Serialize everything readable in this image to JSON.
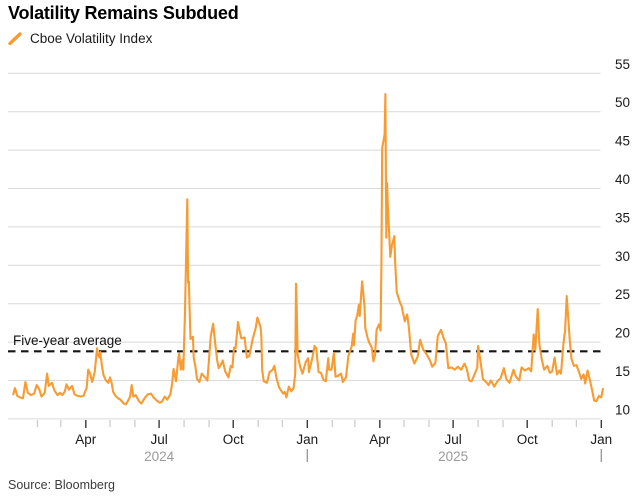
{
  "header": {
    "title": "Volatility Remains Subdued"
  },
  "legend": {
    "items": [
      {
        "label": "Cboe Volatility Index",
        "marker": "slash-icon",
        "color": "#F79B32"
      }
    ]
  },
  "source": {
    "text": "Source: Bloomberg"
  },
  "colors": {
    "line": "#F79B32",
    "grid": "#d9d9d9",
    "average_line": "#141414",
    "axis_text": "#1a1a1a",
    "year_text": "#9b9b9b",
    "minor_tick": "#c9c9c9",
    "major_tick": "#3a3a3a",
    "background": "#ffffff"
  },
  "chart_data": {
    "type": "line",
    "title": "Volatility Remains Subdued",
    "legend_position": "top-left",
    "grid": "horizontal",
    "y_axis": {
      "side": "right",
      "ticks": [
        10,
        15,
        20,
        25,
        30,
        35,
        40,
        45,
        50,
        55
      ],
      "range": [
        9.4,
        55.8
      ]
    },
    "x_axis": {
      "unit": "days_since_2024-01-01",
      "major_ticks": [
        {
          "day": 91,
          "label": "Apr"
        },
        {
          "day": 182,
          "label": "Jul"
        },
        {
          "day": 274,
          "label": "Oct"
        },
        {
          "day": 366,
          "label": "Jan"
        },
        {
          "day": 456,
          "label": "Apr"
        },
        {
          "day": 547,
          "label": "Jul"
        },
        {
          "day": 639,
          "label": "Oct"
        },
        {
          "day": 731,
          "label": "Jan"
        }
      ],
      "minor_tick_days": [
        31,
        60,
        121,
        152,
        213,
        244,
        305,
        335,
        397,
        425,
        486,
        517,
        578,
        609,
        670,
        700
      ],
      "year_labels": [
        {
          "label": "2024",
          "day": 182
        },
        {
          "label": "2025",
          "day": 547
        }
      ],
      "year_boundary_days": [
        366,
        731
      ]
    },
    "average_line": {
      "label": "Five-year average",
      "value": 18.8,
      "style": "dashed"
    },
    "series": [
      {
        "name": "Cboe Volatility Index",
        "color": "#F79B32",
        "points": [
          [
            1,
            13.2
          ],
          [
            3,
            14.0
          ],
          [
            6,
            13.0
          ],
          [
            9,
            12.8
          ],
          [
            13,
            12.7
          ],
          [
            16,
            14.8
          ],
          [
            19,
            13.4
          ],
          [
            23,
            13.1
          ],
          [
            27,
            13.3
          ],
          [
            30,
            14.4
          ],
          [
            33,
            13.9
          ],
          [
            36,
            12.9
          ],
          [
            40,
            13.4
          ],
          [
            43,
            15.9
          ],
          [
            45,
            14.3
          ],
          [
            49,
            14.7
          ],
          [
            52,
            13.7
          ],
          [
            56,
            13.1
          ],
          [
            59,
            13.4
          ],
          [
            62,
            13.1
          ],
          [
            65,
            13.6
          ],
          [
            67,
            14.5
          ],
          [
            70,
            13.8
          ],
          [
            74,
            14.3
          ],
          [
            77,
            13.2
          ],
          [
            81,
            13.0
          ],
          [
            85,
            12.9
          ],
          [
            88,
            13.0
          ],
          [
            92,
            14.0
          ],
          [
            94,
            16.4
          ],
          [
            96,
            16.0
          ],
          [
            99,
            14.8
          ],
          [
            102,
            16.1
          ],
          [
            105,
            19.2
          ],
          [
            106,
            18.4
          ],
          [
            108,
            18.0
          ],
          [
            109,
            18.7
          ],
          [
            111,
            16.9
          ],
          [
            113,
            15.7
          ],
          [
            116,
            15.0
          ],
          [
            119,
            14.7
          ],
          [
            121,
            15.4
          ],
          [
            123,
            14.7
          ],
          [
            125,
            13.5
          ],
          [
            128,
            13.0
          ],
          [
            131,
            12.7
          ],
          [
            134,
            12.5
          ],
          [
            138,
            12.0
          ],
          [
            141,
            11.9
          ],
          [
            143,
            12.3
          ],
          [
            146,
            12.9
          ],
          [
            148,
            14.4
          ],
          [
            150,
            12.9
          ],
          [
            153,
            13.1
          ],
          [
            157,
            12.3
          ],
          [
            160,
            12.0
          ],
          [
            164,
            12.7
          ],
          [
            168,
            13.2
          ],
          [
            172,
            13.3
          ],
          [
            175,
            12.8
          ],
          [
            179,
            12.4
          ],
          [
            183,
            12.1
          ],
          [
            186,
            12.3
          ],
          [
            189,
            12.9
          ],
          [
            192,
            12.5
          ],
          [
            196,
            13.2
          ],
          [
            198,
            14.5
          ],
          [
            200,
            16.5
          ],
          [
            203,
            14.9
          ],
          [
            206,
            18.0
          ],
          [
            207,
            18.5
          ],
          [
            209,
            16.4
          ],
          [
            211,
            17.7
          ],
          [
            212,
            16.4
          ],
          [
            214,
            23.4
          ],
          [
            217,
            38.6
          ],
          [
            218,
            27.7
          ],
          [
            219,
            27.9
          ],
          [
            220,
            23.8
          ],
          [
            221,
            20.4
          ],
          [
            224,
            20.7
          ],
          [
            225,
            18.0
          ],
          [
            227,
            16.9
          ],
          [
            229,
            15.2
          ],
          [
            232,
            14.8
          ],
          [
            235,
            15.9
          ],
          [
            239,
            15.4
          ],
          [
            242,
            15.0
          ],
          [
            246,
            20.7
          ],
          [
            249,
            22.4
          ],
          [
            252,
            19.5
          ],
          [
            254,
            17.7
          ],
          [
            256,
            16.6
          ],
          [
            259,
            17.1
          ],
          [
            261,
            17.6
          ],
          [
            264,
            16.2
          ],
          [
            268,
            15.4
          ],
          [
            271,
            16.9
          ],
          [
            273,
            16.7
          ],
          [
            275,
            19.3
          ],
          [
            277,
            19.2
          ],
          [
            280,
            22.6
          ],
          [
            282,
            21.4
          ],
          [
            284,
            20.5
          ],
          [
            288,
            20.6
          ],
          [
            291,
            18.0
          ],
          [
            294,
            18.2
          ],
          [
            296,
            19.2
          ],
          [
            298,
            20.3
          ],
          [
            302,
            21.9
          ],
          [
            304,
            23.2
          ],
          [
            308,
            21.9
          ],
          [
            309,
            20.5
          ],
          [
            310,
            16.3
          ],
          [
            312,
            14.9
          ],
          [
            316,
            14.7
          ],
          [
            319,
            16.1
          ],
          [
            323,
            16.4
          ],
          [
            325,
            16.9
          ],
          [
            328,
            15.2
          ],
          [
            331,
            14.1
          ],
          [
            336,
            13.3
          ],
          [
            338,
            13.5
          ],
          [
            340,
            12.8
          ],
          [
            343,
            14.2
          ],
          [
            346,
            13.6
          ],
          [
            349,
            14.0
          ],
          [
            351,
            15.9
          ],
          [
            352,
            27.6
          ],
          [
            353,
            24.1
          ],
          [
            354,
            18.4
          ],
          [
            357,
            16.8
          ],
          [
            360,
            15.9
          ],
          [
            364,
            17.4
          ],
          [
            367,
            17.9
          ],
          [
            368,
            16.1
          ],
          [
            372,
            17.8
          ],
          [
            375,
            19.5
          ],
          [
            377,
            19.2
          ],
          [
            380,
            16.1
          ],
          [
            383,
            16.0
          ],
          [
            386,
            15.1
          ],
          [
            389,
            14.9
          ],
          [
            392,
            17.9
          ],
          [
            393,
            16.4
          ],
          [
            396,
            16.4
          ],
          [
            399,
            18.6
          ],
          [
            401,
            15.5
          ],
          [
            404,
            15.6
          ],
          [
            408,
            15.9
          ],
          [
            410,
            14.8
          ],
          [
            414,
            15.4
          ],
          [
            417,
            18.2
          ],
          [
            421,
            19.4
          ],
          [
            423,
            21.1
          ],
          [
            424,
            19.6
          ],
          [
            426,
            22.8
          ],
          [
            428,
            23.5
          ],
          [
            430,
            24.9
          ],
          [
            431,
            23.4
          ],
          [
            434,
            27.9
          ],
          [
            435,
            26.9
          ],
          [
            437,
            24.7
          ],
          [
            438,
            21.8
          ],
          [
            441,
            20.5
          ],
          [
            443,
            19.9
          ],
          [
            446,
            19.3
          ],
          [
            448,
            17.5
          ],
          [
            450,
            18.3
          ],
          [
            452,
            21.6
          ],
          [
            455,
            22.3
          ],
          [
            457,
            21.5
          ],
          [
            458,
            30.0
          ],
          [
            459,
            45.3
          ],
          [
            462,
            47.0
          ],
          [
            463,
            52.3
          ],
          [
            464,
            33.6
          ],
          [
            465,
            40.7
          ],
          [
            466,
            37.6
          ],
          [
            469,
            31.1
          ],
          [
            471,
            32.6
          ],
          [
            474,
            33.8
          ],
          [
            475,
            30.6
          ],
          [
            477,
            26.5
          ],
          [
            481,
            25.2
          ],
          [
            483,
            24.7
          ],
          [
            487,
            22.7
          ],
          [
            490,
            23.6
          ],
          [
            492,
            22.0
          ],
          [
            495,
            18.4
          ],
          [
            499,
            17.2
          ],
          [
            503,
            18.1
          ],
          [
            506,
            20.3
          ],
          [
            510,
            19.0
          ],
          [
            513,
            18.6
          ],
          [
            518,
            17.7
          ],
          [
            521,
            16.8
          ],
          [
            525,
            17.3
          ],
          [
            528,
            20.8
          ],
          [
            532,
            21.6
          ],
          [
            535,
            20.6
          ],
          [
            538,
            19.8
          ],
          [
            541,
            16.6
          ],
          [
            545,
            16.7
          ],
          [
            549,
            16.4
          ],
          [
            553,
            16.8
          ],
          [
            557,
            16.4
          ],
          [
            561,
            17.2
          ],
          [
            564,
            16.5
          ],
          [
            567,
            15.0
          ],
          [
            570,
            14.9
          ],
          [
            574,
            15.9
          ],
          [
            577,
            16.7
          ],
          [
            578,
            19.5
          ],
          [
            581,
            17.5
          ],
          [
            584,
            15.2
          ],
          [
            588,
            14.8
          ],
          [
            591,
            14.4
          ],
          [
            594,
            15.0
          ],
          [
            598,
            14.2
          ],
          [
            602,
            14.9
          ],
          [
            606,
            15.3
          ],
          [
            610,
            16.6
          ],
          [
            613,
            15.2
          ],
          [
            617,
            14.7
          ],
          [
            622,
            16.4
          ],
          [
            625,
            15.5
          ],
          [
            629,
            15.0
          ],
          [
            632,
            16.7
          ],
          [
            636,
            16.3
          ],
          [
            641,
            16.6
          ],
          [
            644,
            16.2
          ],
          [
            647,
            21.0
          ],
          [
            649,
            19.0
          ],
          [
            652,
            24.3
          ],
          [
            654,
            19.8
          ],
          [
            657,
            17.8
          ],
          [
            660,
            16.4
          ],
          [
            664,
            16.9
          ],
          [
            667,
            16.0
          ],
          [
            670,
            16.2
          ],
          [
            673,
            18.0
          ],
          [
            676,
            15.8
          ],
          [
            679,
            16.3
          ],
          [
            681,
            15.9
          ],
          [
            684,
            19.9
          ],
          [
            686,
            21.5
          ],
          [
            688,
            26.0
          ],
          [
            690,
            23.0
          ],
          [
            692,
            20.0
          ],
          [
            694,
            17.8
          ],
          [
            697,
            16.9
          ],
          [
            700,
            17.0
          ],
          [
            703,
            16.2
          ],
          [
            706,
            15.2
          ],
          [
            709,
            15.8
          ],
          [
            711,
            14.6
          ],
          [
            714,
            16.3
          ],
          [
            717,
            15.0
          ],
          [
            720,
            13.5
          ],
          [
            722,
            12.4
          ],
          [
            725,
            12.3
          ],
          [
            728,
            13.0
          ],
          [
            731,
            12.8
          ],
          [
            733,
            13.9
          ]
        ]
      }
    ]
  }
}
